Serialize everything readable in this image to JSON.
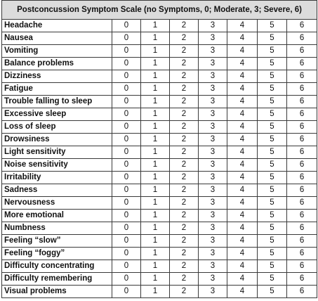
{
  "title": "Postconcussion Symptom Scale (no Symptoms, 0; Moderate, 3; Severe, 6)",
  "scores": [
    "0",
    "1",
    "2",
    "3",
    "4",
    "5",
    "6"
  ],
  "symptoms": [
    "Headache",
    "Nausea",
    "Vomiting",
    "Balance problems",
    "Dizziness",
    "Fatigue",
    "Trouble falling to sleep",
    "Excessive sleep",
    "Loss of sleep",
    "Drowsiness",
    "Light sensitivity",
    "Noise sensitivity",
    "Irritability",
    "Sadness",
    "Nervousness",
    "More emotional",
    "Numbness",
    "Feeling “slow”",
    "Feeling “foggy”",
    "Difficulty concentrating",
    "Difficulty remembering",
    "Visual problems"
  ]
}
